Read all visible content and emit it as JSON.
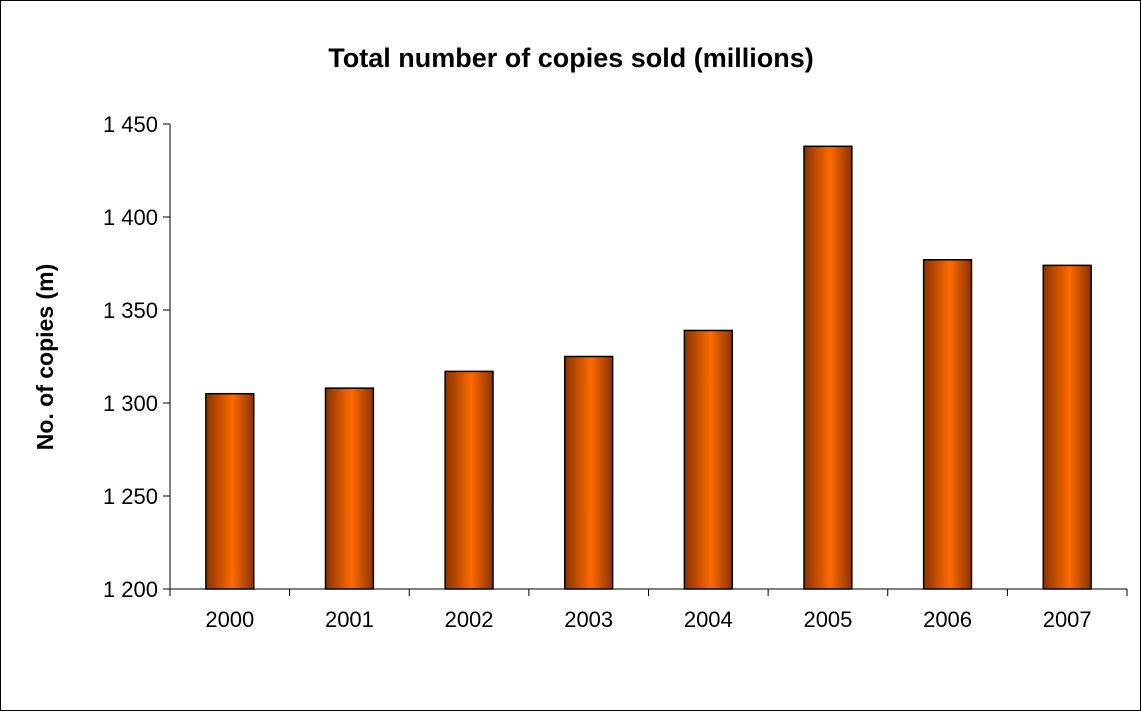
{
  "chart_data": {
    "type": "bar",
    "title": "Total number of copies sold (millions)",
    "xlabel": "",
    "ylabel": "No. of copies (m)",
    "categories": [
      "2000",
      "2001",
      "2002",
      "2003",
      "2004",
      "2005",
      "2006",
      "2007"
    ],
    "values": [
      1305,
      1308,
      1317,
      1325,
      1339,
      1438,
      1377,
      1374
    ],
    "ylim": [
      1200,
      1450
    ],
    "yticks": [
      1200,
      1250,
      1300,
      1350,
      1400,
      1450
    ],
    "ytick_labels": [
      "1 200",
      "1 250",
      "1 300",
      "1 350",
      "1 400",
      "1 450"
    ],
    "grid": false,
    "legend": "none",
    "colors": {
      "bar_light": "#ff6a00",
      "bar_dark": "#8a3300",
      "bar_edge": "#000000"
    }
  }
}
